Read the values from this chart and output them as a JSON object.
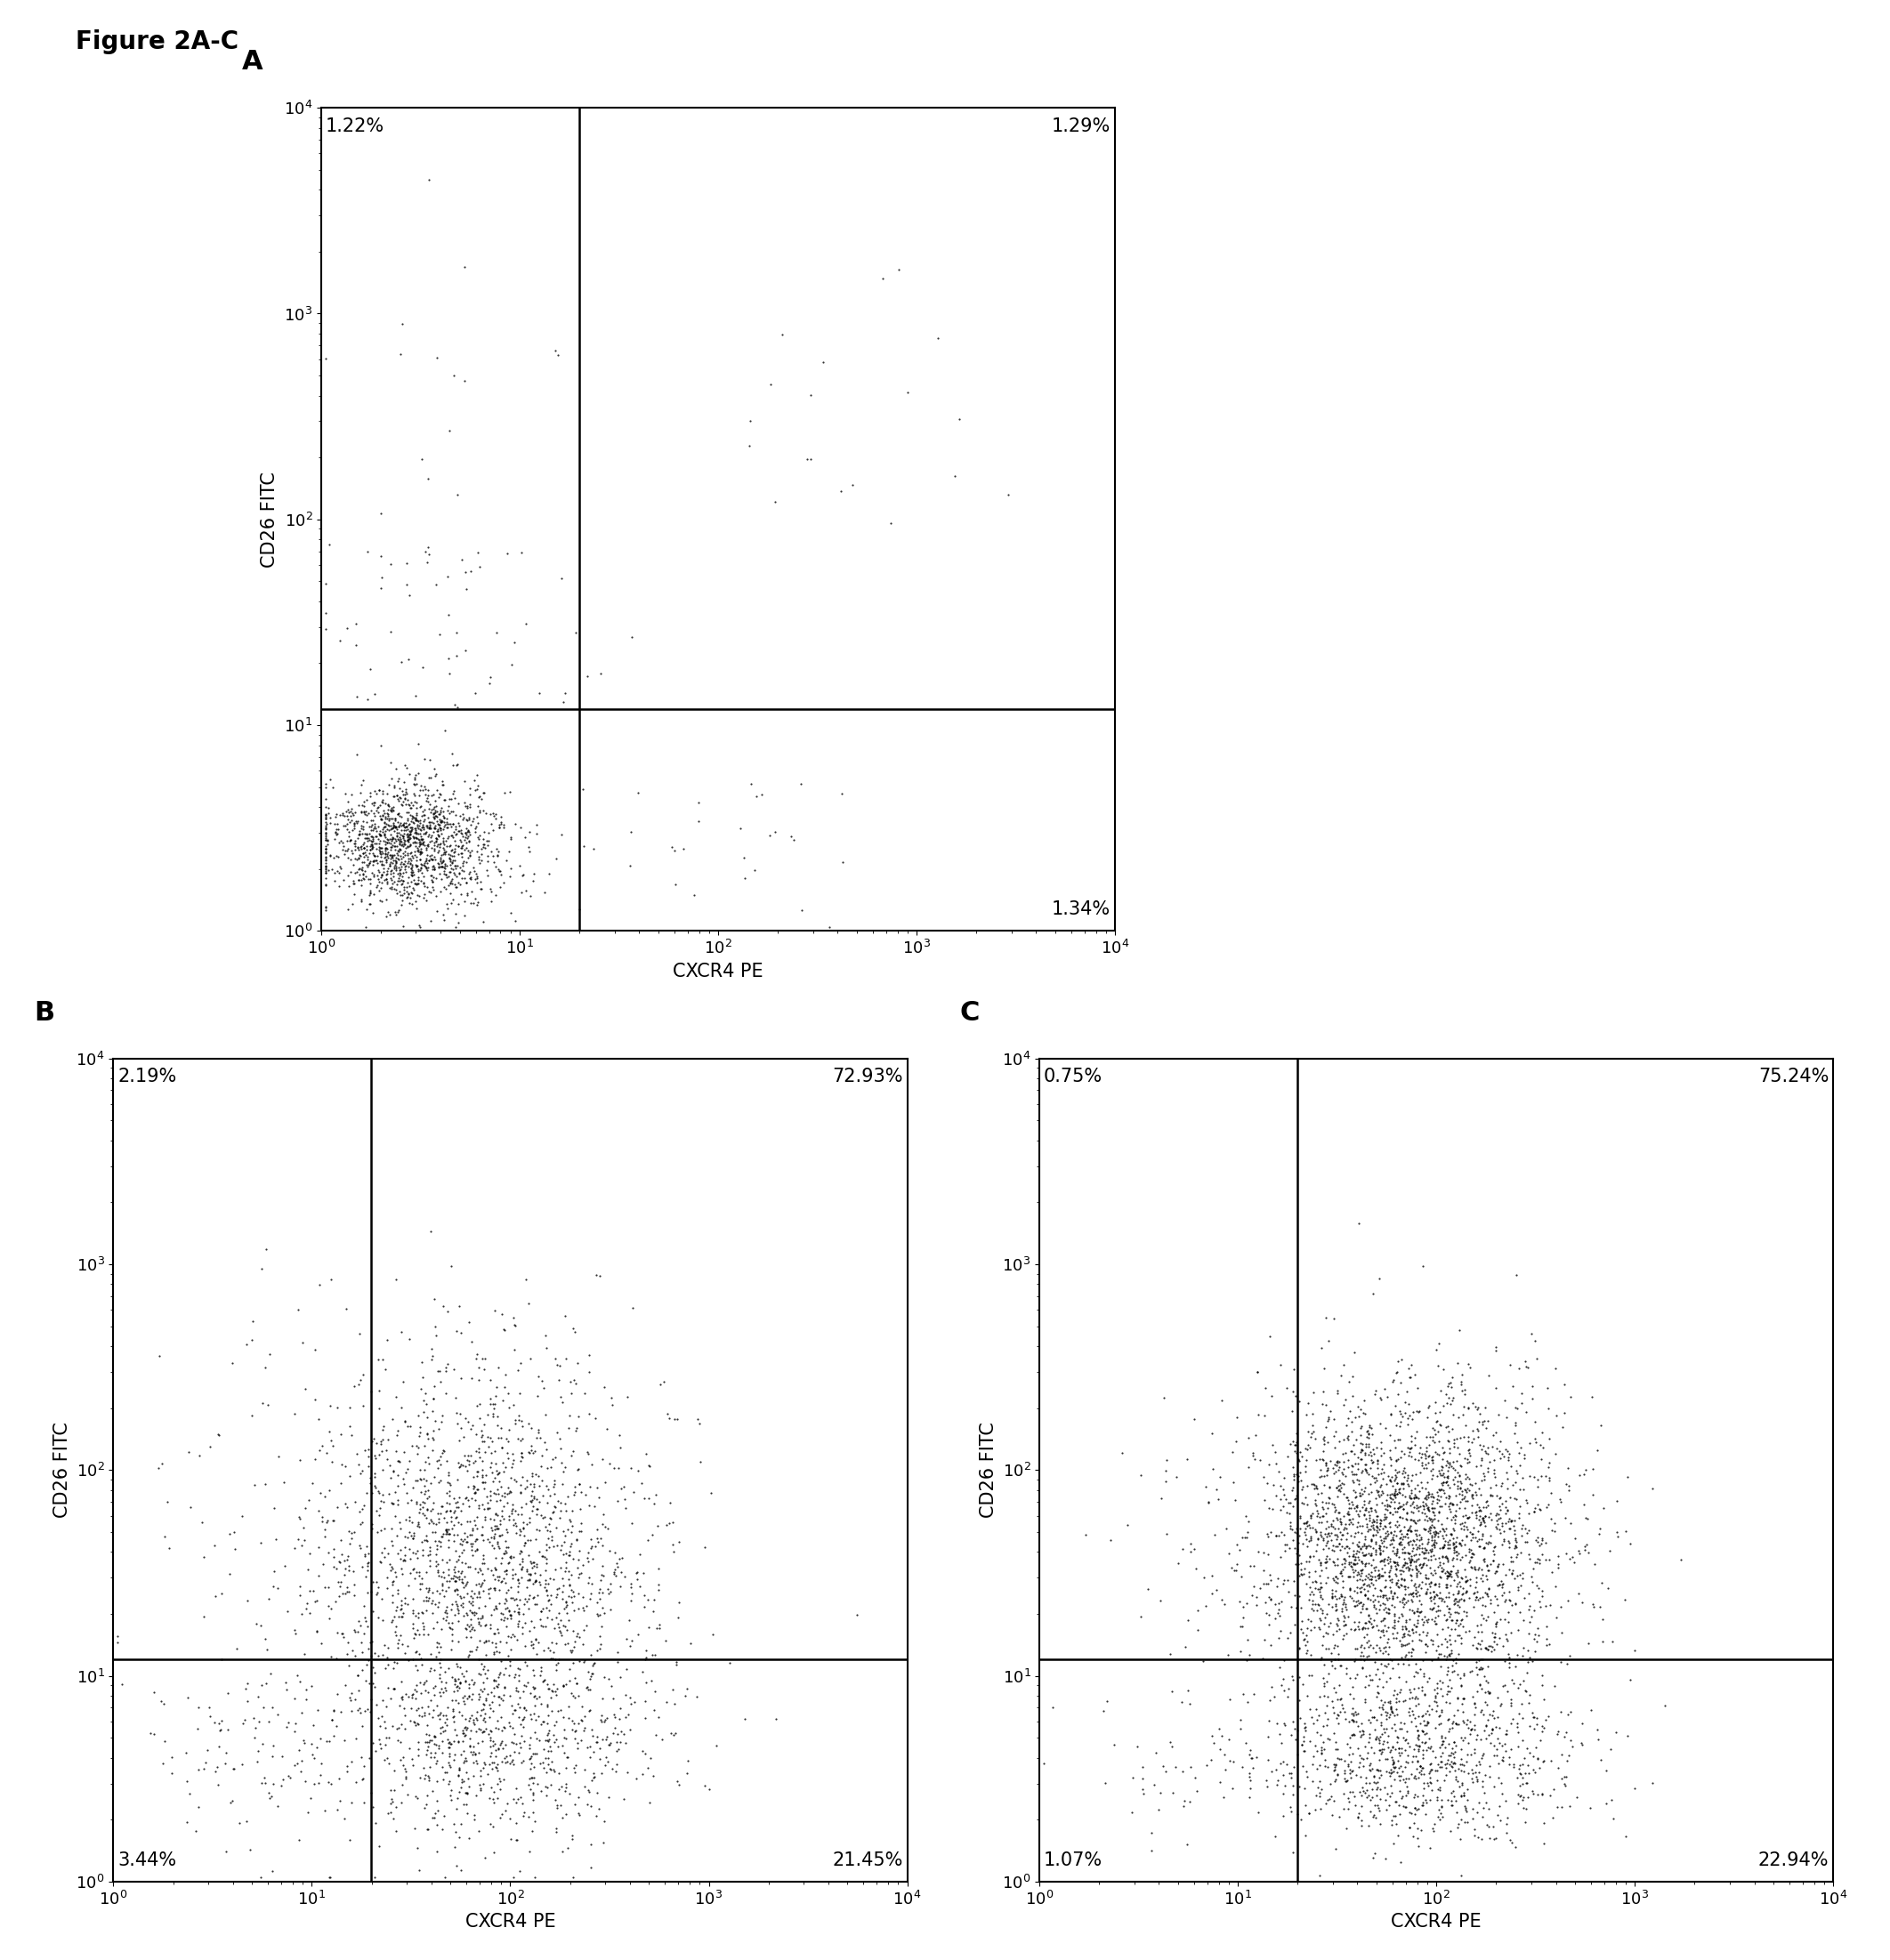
{
  "figure_title": "Figure 2A-C",
  "panels": [
    {
      "label": "A",
      "quadrant_labels": {
        "UL": "1.22%",
        "UR": "1.29%",
        "LL": "",
        "LR": "1.34%"
      },
      "gate_x_log": 1.3,
      "gate_y": 12,
      "xlim": [
        1.0,
        10000.0
      ],
      "ylim": [
        1.0,
        10000.0
      ],
      "xlabel": "CXCR4 PE",
      "ylabel": "CD26 FITC",
      "n_points": 1500
    },
    {
      "label": "B",
      "quadrant_labels": {
        "UL": "2.19%",
        "UR": "72.93%",
        "LL": "3.44%",
        "LR": "21.45%"
      },
      "gate_x_log": 1.3,
      "gate_y": 12,
      "xlim": [
        1.0,
        10000.0
      ],
      "ylim": [
        1.0,
        10000.0
      ],
      "xlabel": "CXCR4 PE",
      "ylabel": "CD26 FITC",
      "n_points": 2800
    },
    {
      "label": "C",
      "quadrant_labels": {
        "UL": "0.75%",
        "UR": "75.24%",
        "LL": "1.07%",
        "LR": "22.94%"
      },
      "gate_x_log": 1.3,
      "gate_y": 12,
      "xlim": [
        1.0,
        10000.0
      ],
      "ylim": [
        1.0,
        10000.0
      ],
      "xlabel": "CXCR4 PE",
      "ylabel": "CD26 FITC",
      "n_points": 4000
    }
  ],
  "bg_color": "#ffffff",
  "dot_color": "#000000",
  "line_color": "#000000",
  "font_color": "#000000",
  "title_fontsize": 20,
  "panel_label_fontsize": 22,
  "axis_label_fontsize": 15,
  "tick_fontsize": 13,
  "pct_fontsize": 15,
  "dot_size": 2.5,
  "dot_alpha": 0.8
}
